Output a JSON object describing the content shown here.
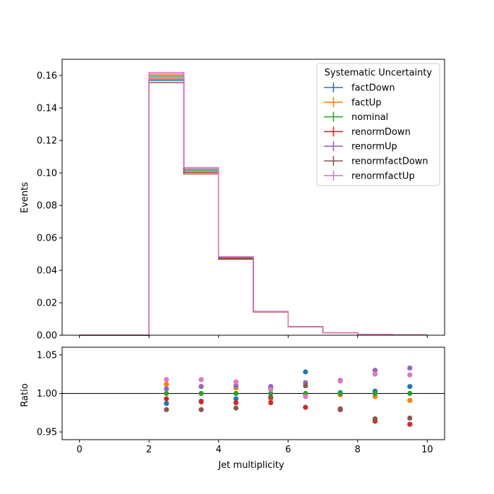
{
  "chart_data": {
    "type": "line",
    "subtype": "step-histogram-with-ratio",
    "title": "",
    "xlabel": "Jet multiplicity",
    "ylabel": "Events",
    "ratio_ylabel": "Ratio",
    "xlim": [
      -0.5,
      10.5
    ],
    "ylim": [
      0,
      0.17
    ],
    "ratio_ylim": [
      0.94,
      1.06
    ],
    "ratio_reference": 1.0,
    "x_ticks": [
      "0",
      "2",
      "4",
      "6",
      "8",
      "10"
    ],
    "y_ticks": [
      "0.00",
      "0.02",
      "0.04",
      "0.06",
      "0.08",
      "0.10",
      "0.12",
      "0.14",
      "0.16"
    ],
    "ratio_ticks": [
      "0.95",
      "1.00",
      "1.05"
    ],
    "legend": {
      "title": "Systematic Uncertainty",
      "placement": "top-right"
    },
    "bin_edges": [
      0,
      1,
      2,
      3,
      4,
      5,
      6,
      7,
      8,
      9,
      10
    ],
    "nominal": [
      0,
      0,
      0.159,
      0.1015,
      0.0477,
      0.0145,
      0.0052,
      0.0016,
      0.0005,
      0.00015
    ],
    "series": [
      {
        "name": "factDown",
        "color": "#1f77b4",
        "ratio": [
          null,
          null,
          0.987,
          0.99,
          0.993,
          1.007,
          1.028,
          1.001,
          1.003,
          1.009
        ]
      },
      {
        "name": "factUp",
        "color": "#ff7f0e",
        "ratio": [
          null,
          null,
          1.012,
          1.009,
          1.007,
          0.993,
          0.998,
          0.998,
          0.996,
          0.991
        ]
      },
      {
        "name": "nominal",
        "color": "#2ca02c",
        "ratio": [
          null,
          null,
          1.0,
          1.0,
          1.0,
          1.0,
          1.0,
          1.0,
          1.0,
          1.0
        ]
      },
      {
        "name": "renormDown",
        "color": "#d62728",
        "ratio": [
          null,
          null,
          0.993,
          0.989,
          0.988,
          0.988,
          0.982,
          0.979,
          0.964,
          0.96
        ]
      },
      {
        "name": "renormUp",
        "color": "#9467bd",
        "ratio": [
          null,
          null,
          1.006,
          1.009,
          1.01,
          1.009,
          1.014,
          1.017,
          1.03,
          1.033
        ]
      },
      {
        "name": "renormfactDown",
        "color": "#8c564b",
        "ratio": [
          null,
          null,
          0.979,
          0.979,
          0.981,
          0.995,
          1.01,
          0.98,
          0.967,
          0.968
        ]
      },
      {
        "name": "renormfactUp",
        "color": "#e377c2",
        "ratio": [
          null,
          null,
          1.018,
          1.018,
          1.015,
          1.005,
          0.996,
          1.016,
          1.025,
          1.024
        ]
      }
    ]
  }
}
